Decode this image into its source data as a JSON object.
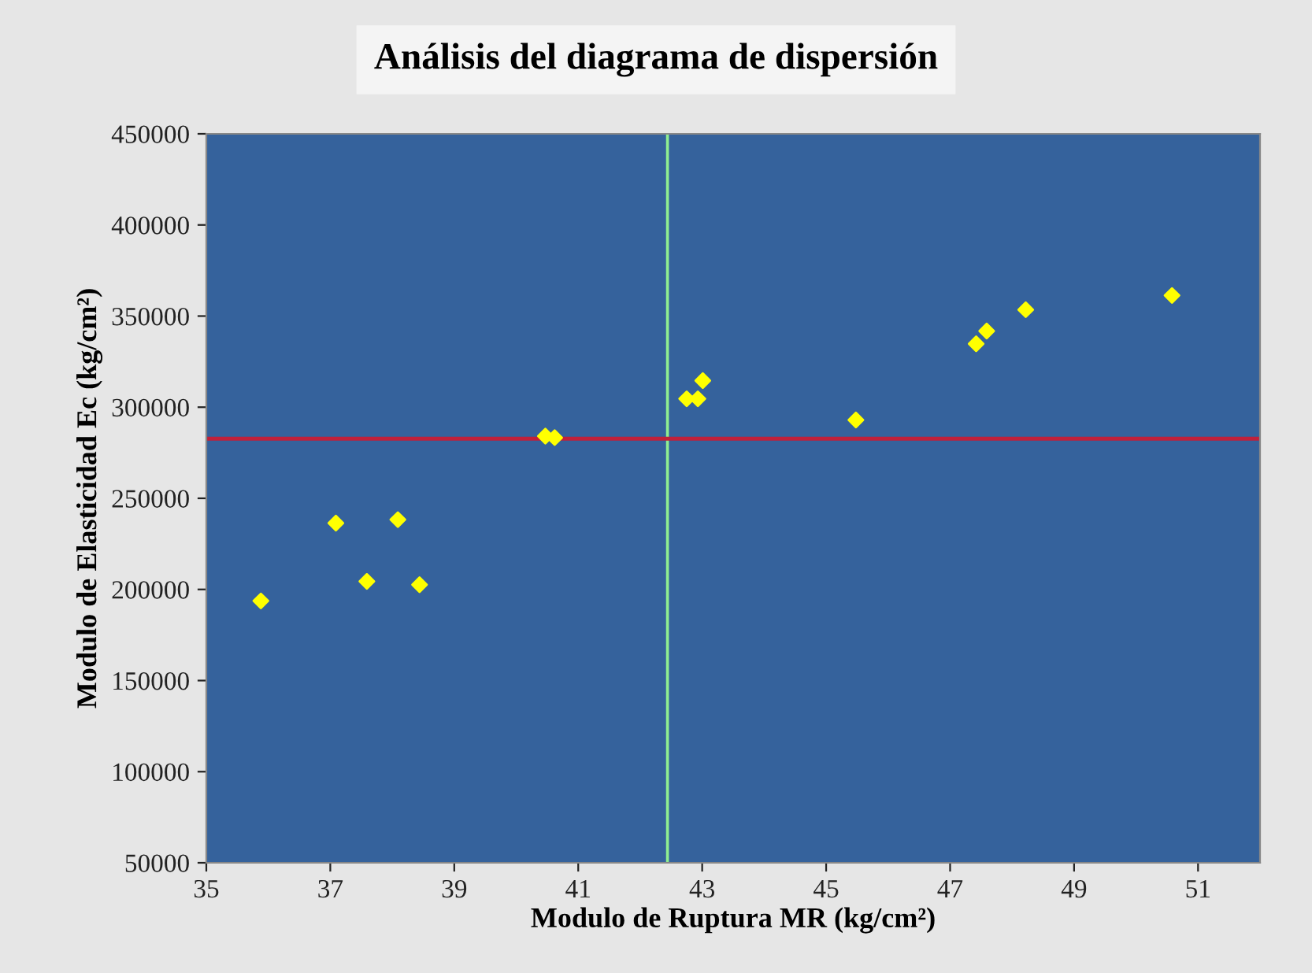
{
  "chart_data": {
    "type": "scatter",
    "title": "Análisis del diagrama de dispersión",
    "xlabel": "Modulo de Ruptura MR (kg/cm²)",
    "ylabel": "Modulo de Elasticidad Ec (kg/cm²)",
    "x": [
      35.88,
      37.09,
      37.59,
      38.09,
      38.44,
      40.47,
      40.62,
      42.75,
      42.93,
      43.01,
      45.48,
      47.42,
      47.59,
      48.22,
      50.58
    ],
    "series": [
      {
        "color": "#ffff00",
        "values": [
          193700,
          236400,
          204400,
          238300,
          202600,
          284100,
          283300,
          304600,
          304600,
          314600,
          293000,
          334800,
          341800,
          353500,
          361300
        ]
      }
    ],
    "marker": "diamond",
    "xlim": [
      35,
      52
    ],
    "xticks": [
      35,
      37,
      39,
      41,
      43,
      45,
      47,
      49,
      51
    ],
    "ylim": [
      50000,
      450000
    ],
    "yticks": [
      50000,
      100000,
      150000,
      200000,
      250000,
      300000,
      350000,
      400000,
      450000
    ],
    "ref_lines": [
      {
        "axis": "x",
        "value": 42.44,
        "color": "#90ee90"
      },
      {
        "axis": "y",
        "value": 282700,
        "color": "#c0203a"
      }
    ],
    "grid": false,
    "legend": false
  }
}
